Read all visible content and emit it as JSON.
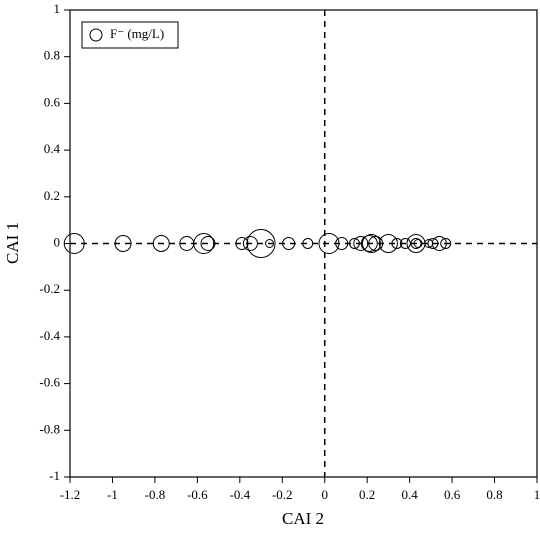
{
  "chart_data": {
    "type": "scatter",
    "x_label": "CAI 2",
    "y_label": "CAI 1",
    "series": [
      {
        "name": "F⁻ (mg/L)",
        "color": "#000000",
        "x": [
          -1.18,
          -0.95,
          -0.77,
          -0.65,
          -0.57,
          -0.55,
          -0.39,
          -0.35,
          -0.3,
          -0.26,
          -0.17,
          -0.08,
          0.02,
          0.08,
          0.14,
          0.17,
          0.21,
          0.22,
          0.24,
          0.3,
          0.34,
          0.38,
          0.43,
          0.43,
          0.44,
          0.49,
          0.51,
          0.54,
          0.57
        ],
        "values": [
          0,
          0,
          0,
          0,
          0,
          0,
          0,
          0,
          0,
          0,
          0,
          0,
          0,
          0,
          0,
          0,
          0,
          0,
          0,
          0,
          0,
          0,
          0,
          0,
          0,
          0,
          0,
          0,
          0
        ],
        "sizes": [
          2.0,
          1.6,
          1.6,
          1.4,
          2.0,
          1.4,
          1.2,
          1.4,
          2.8,
          0.8,
          1.2,
          1.0,
          2.0,
          1.2,
          1.0,
          1.4,
          1.6,
          1.8,
          1.4,
          1.8,
          1.0,
          1.0,
          1.8,
          1.0,
          0.8,
          0.8,
          1.0,
          1.4,
          1.0
        ]
      }
    ],
    "xlim": [
      -1.2,
      1
    ],
    "ylim": [
      -1,
      1
    ],
    "xticks": [
      -1.2,
      -1,
      -0.8,
      -0.6,
      -0.4,
      -0.2,
      0,
      0.2,
      0.4,
      0.6,
      0.8,
      1
    ],
    "yticks": [
      -1,
      -0.8,
      -0.6,
      -0.4,
      -0.2,
      0,
      0.2,
      0.4,
      0.6,
      0.8,
      1
    ],
    "reference_lines": {
      "x": 0,
      "y": 0
    },
    "legend": "upper left"
  }
}
